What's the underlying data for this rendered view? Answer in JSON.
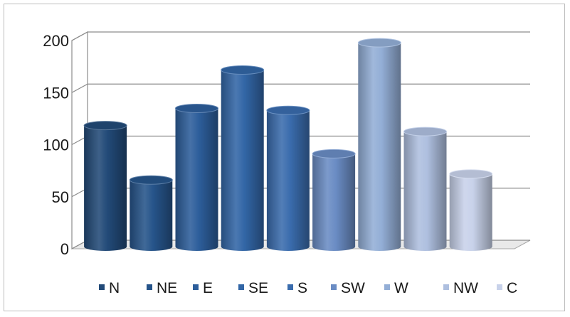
{
  "chart_data": {
    "type": "bar",
    "style": "3d-cylinder",
    "categories": [
      "N",
      "NE",
      "E",
      "SE",
      "S",
      "SW",
      "W",
      "NW",
      "C"
    ],
    "values": [
      120,
      66,
      137,
      175,
      135,
      92,
      202,
      114,
      72
    ],
    "colors": [
      "#224a78",
      "#26548a",
      "#2d5e9b",
      "#3266a6",
      "#3a6cad",
      "#6a8cc4",
      "#93aed6",
      "#aebfdf",
      "#c8d2ea"
    ],
    "ylim": [
      0,
      200
    ],
    "yticks": [
      0,
      50,
      100,
      150,
      200
    ],
    "grid": true,
    "legend": "bottom",
    "title": "",
    "xlabel": "",
    "ylabel": ""
  }
}
